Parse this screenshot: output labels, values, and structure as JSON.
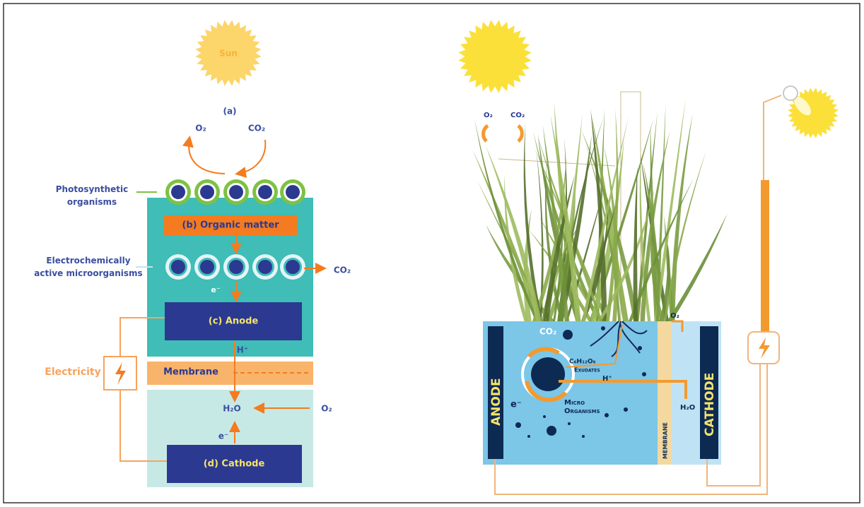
{
  "left": {
    "sun": "Sun",
    "panel_label": "(a)",
    "o2_top": "O₂",
    "co2_top": "CO₂",
    "photosynthetic": [
      "Photosynthetic",
      "organisms"
    ],
    "organic_matter": "(b)  Organic matter",
    "electroactive": [
      "Electrochemically",
      "active microorganisms"
    ],
    "co2_out": "CO₂",
    "electron_1": "e⁻",
    "anode": "(c)  Anode",
    "proton": "H⁺",
    "membrane": "Membrane",
    "electricity": "Electricity",
    "water": "H₂O",
    "o2_in": "O₂",
    "electron_2": "e⁻",
    "cathode": "(d)  Cathode"
  },
  "right": {
    "o2_air": "O₂",
    "co2_air": "CO₂",
    "co2_tank": "CO₂",
    "o2_cathode": "O₂",
    "glucose": "C₆H₁₂O₆",
    "exudates": "Exudates",
    "proton": "H⁺",
    "electron": "e⁻",
    "microorganisms": [
      "Micro",
      "Organisms"
    ],
    "anode": "ANODE",
    "membrane": "MEMBRANE",
    "cathode": "CATHODE",
    "water": "H₂O"
  }
}
